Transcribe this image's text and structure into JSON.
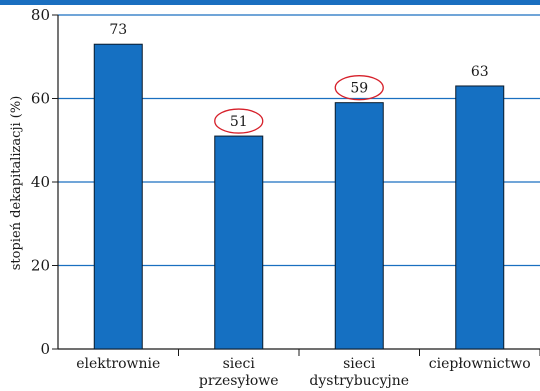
{
  "chart_data": {
    "type": "bar",
    "title": "",
    "xlabel": "",
    "ylabel": "stopień dekapitalizacji (%)",
    "ylim": [
      0,
      80
    ],
    "yticks": [
      0,
      20,
      40,
      60,
      80
    ],
    "grid": true,
    "categories": [
      [
        "elektrownie"
      ],
      [
        "sieci",
        "przesyłowe"
      ],
      [
        "sieci",
        "dystrybucyjne"
      ],
      [
        "ciepłownictwo"
      ]
    ],
    "values": [
      73,
      51,
      59,
      63
    ],
    "highlighted": [
      false,
      true,
      true,
      false
    ],
    "colors": {
      "bar": "#1570c2",
      "bar_edge": "#0a1a2a",
      "grid": "#1a6fc0",
      "top_band": "#1a6fc0",
      "highlight_ring": "#d6202a"
    }
  }
}
